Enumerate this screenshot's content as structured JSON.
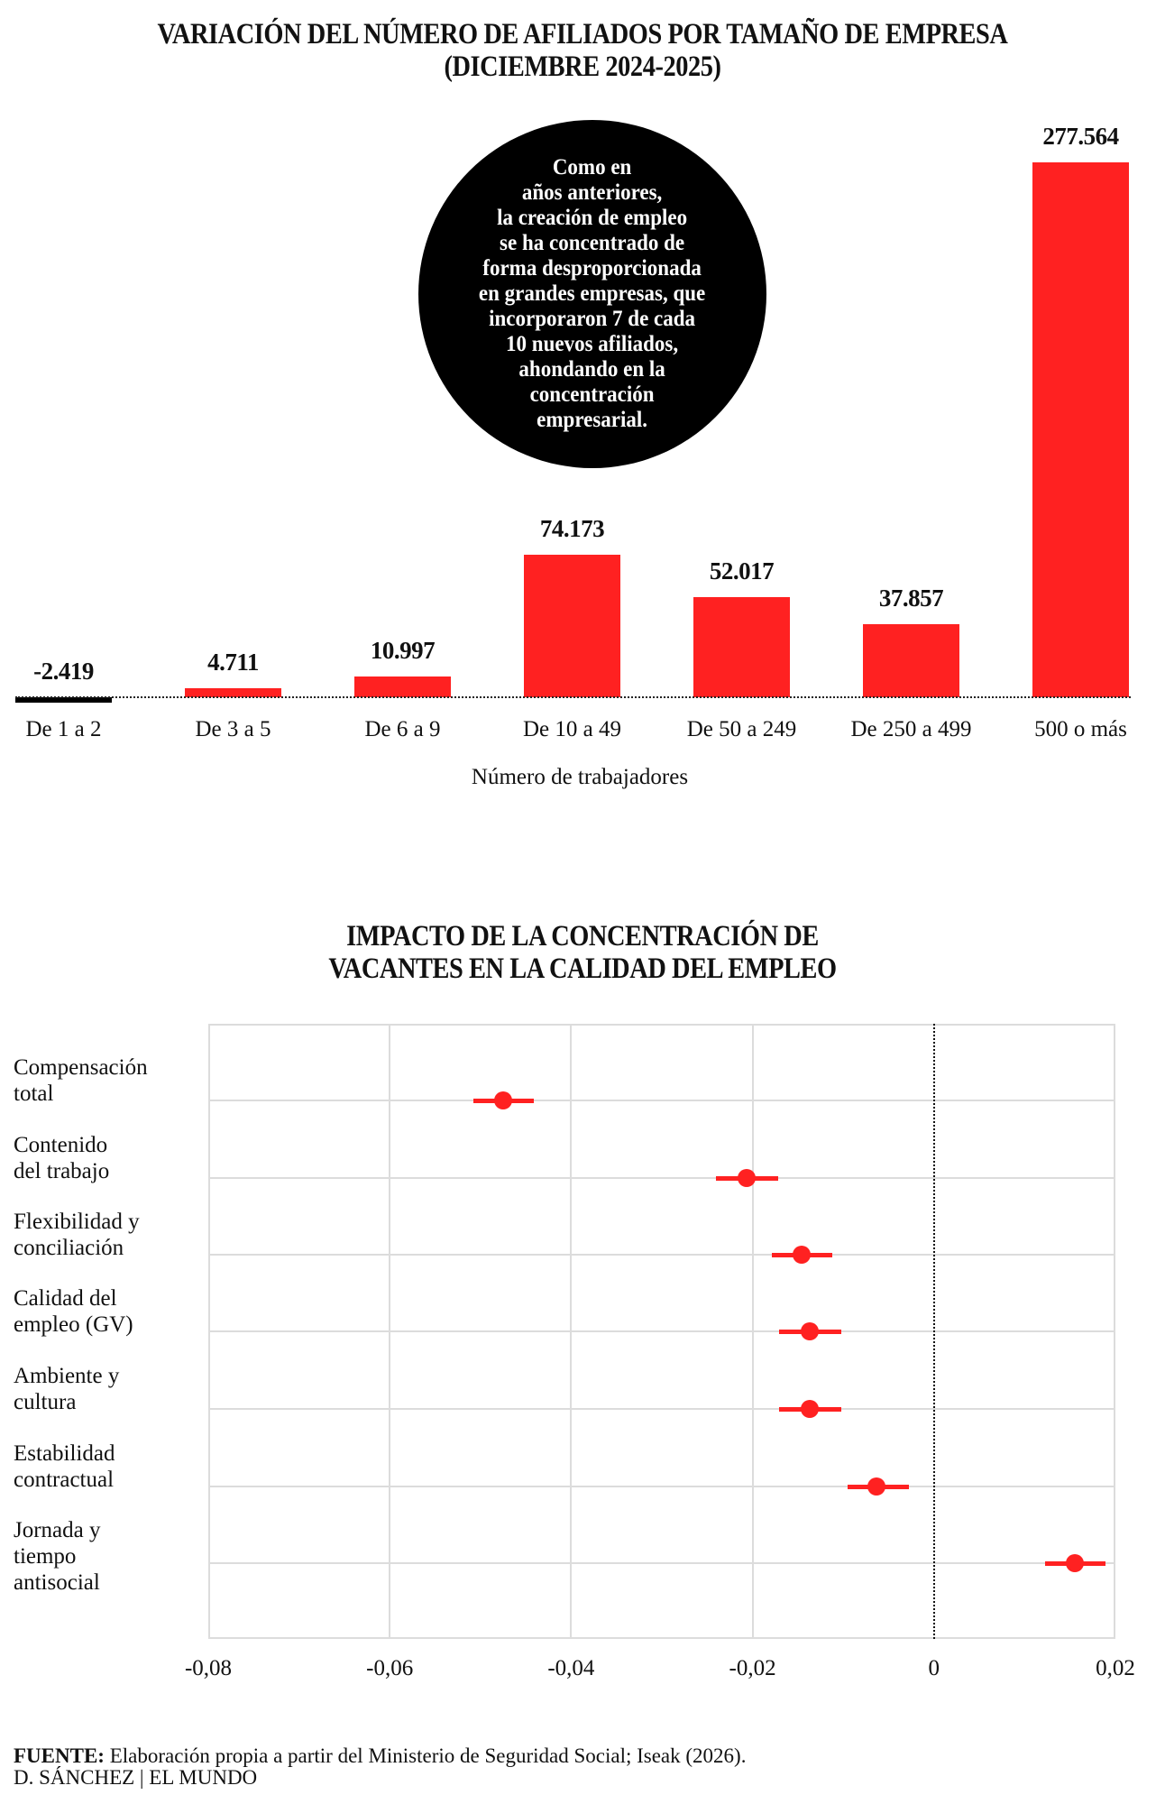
{
  "chart1": {
    "title_line1": "VARIACIÓN DEL NÚMERO DE AFILIADOS POR TAMAÑO DE EMPRESA",
    "title_line2": "(DICIEMBRE 2024-2025)",
    "callout": "Como en\naños anteriores,\nla creación de empleo\nse ha concentrado de\nforma desproporcionada\nen grandes empresas, que\nincorporaron 7 de cada\n10 nuevos afiliados,\nahondando en la\nconcentración\nempresarial.",
    "xlabel": "Número de trabajadores",
    "bars": [
      {
        "category": "De 1 a 2",
        "label": "-2.419"
      },
      {
        "category": "De 3 a 5",
        "label": "4.711"
      },
      {
        "category": "De 6 a 9",
        "label": "10.997"
      },
      {
        "category": "De 10 a 49",
        "label": "74.173"
      },
      {
        "category": "De 50 a 249",
        "label": "52.017"
      },
      {
        "category": "De 250 a 499",
        "label": "37.857"
      },
      {
        "category": "500 o más",
        "label": "277.564"
      }
    ]
  },
  "chart2": {
    "title_line1": "IMPACTO DE LA CONCENTRACIÓN DE",
    "title_line2": "VACANTES EN LA CALIDAD DEL EMPLEO",
    "rows": [
      {
        "label": "Compensación\ntotal"
      },
      {
        "label": "Contenido\ndel trabajo"
      },
      {
        "label": "Flexibilidad y\nconciliación"
      },
      {
        "label": "Calidad del\nempleo (GV)"
      },
      {
        "label": "Ambiente y\ncultura"
      },
      {
        "label": "Estabilidad\ncontractual"
      },
      {
        "label": "Jornada y\ntiempo\nantisocial"
      }
    ],
    "ticks": [
      "-0,08",
      "-0,06",
      "-0,04",
      "-0,02",
      "0",
      "0,02"
    ]
  },
  "footer": {
    "source_head": "FUENTE:",
    "source_text": " Elaboración propia a partir del Ministerio de Seguridad Social; Iseak (2026).",
    "credit": "D. SÁNCHEZ | EL MUNDO"
  },
  "colors": {
    "bar_positive": "#ff2121",
    "bar_negative": "#000000",
    "point": "#ff2121",
    "gridline": "#dcdcdc",
    "callout_bg": "#000000"
  },
  "chart_data": [
    {
      "type": "bar",
      "title": "VARIACIÓN DEL NÚMERO DE AFILIADOS POR TAMAÑO DE EMPRESA (DICIEMBRE 2024-2025)",
      "xlabel": "Número de trabajadores",
      "ylabel": "",
      "categories": [
        "De 1 a 2",
        "De 3 a 5",
        "De 6 a 9",
        "De 10 a 49",
        "De 50 a 249",
        "De 250 a 499",
        "500 o más"
      ],
      "values": [
        -2419,
        4711,
        10997,
        74173,
        52017,
        37857,
        277564
      ],
      "data_labels": [
        "-2.419",
        "4.711",
        "10.997",
        "74.173",
        "52.017",
        "37.857",
        "277.564"
      ],
      "grid": false,
      "annotation": "Como en años anteriores, la creación de empleo se ha concentrado de forma desproporcionada en grandes empresas, que incorporaron 7 de cada 10 nuevos afiliados, ahondando en la concentración empresarial."
    },
    {
      "type": "scatter",
      "subtype": "forest-plot",
      "title": "IMPACTO DE LA CONCENTRACIÓN DE VACANTES EN LA CALIDAD DEL EMPLEO",
      "xlabel": "",
      "ylabel": "",
      "xlim": [
        -0.08,
        0.02
      ],
      "xticks": [
        -0.08,
        -0.06,
        -0.04,
        -0.02,
        0,
        0.02
      ],
      "xtick_labels": [
        "-0,08",
        "-0,06",
        "-0,04",
        "-0,02",
        "0",
        "0,02"
      ],
      "reference_line": 0,
      "grid": true,
      "categories": [
        "Compensación total",
        "Contenido del trabajo",
        "Flexibilidad y conciliación",
        "Calidad del empleo (GV)",
        "Ambiente y cultura",
        "Estabilidad contractual",
        "Jornada y tiempo antisocial"
      ],
      "estimates": [
        -0.0475,
        -0.0207,
        -0.0146,
        -0.0137,
        -0.0137,
        -0.0063,
        0.0155
      ],
      "ci_low": [
        -0.0508,
        -0.024,
        -0.0179,
        -0.0171,
        -0.0171,
        -0.0095,
        0.0122
      ],
      "ci_high": [
        -0.0441,
        -0.0172,
        -0.0112,
        -0.0102,
        -0.0102,
        -0.0028,
        0.0189
      ]
    }
  ]
}
